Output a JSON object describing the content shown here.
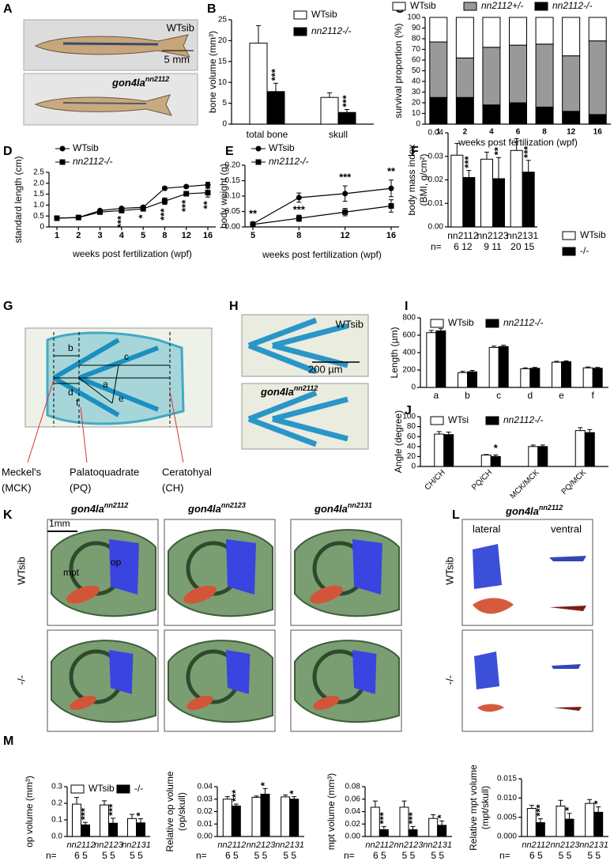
{
  "photo_a": {
    "panel": "A",
    "top_label": "WTsib",
    "scale": "5 mm",
    "bottom_gene": "gon4la",
    "bottom_allele": "nn2112"
  },
  "diagram_g": {
    "panel": "G",
    "letters": [
      "b",
      "c",
      "d",
      "a",
      "f",
      "e"
    ],
    "callouts": [
      "Meckel's",
      "(MCK)",
      "Palatoquadrate",
      "(PQ)",
      "Ceratohyal",
      "(CH)"
    ]
  },
  "photo_h": {
    "panel": "H",
    "top_label": "WTsib",
    "scale": "200 µm",
    "bottom_gene": "gon4la",
    "bottom_allele": "nn2112"
  },
  "render_k": {
    "panel": "K",
    "scale": "1mm",
    "columns": [
      {
        "gene": "gon4la",
        "allele": "nn2112"
      },
      {
        "gene": "gon4la",
        "allele": "nn2123"
      },
      {
        "gene": "gon4la",
        "allele": "nn2131"
      }
    ],
    "row_labels": [
      "WTsib",
      "-/-"
    ],
    "part_labels": [
      "mpt",
      "op"
    ]
  },
  "render_l": {
    "panel": "L",
    "gene": "gon4la",
    "allele": "nn2112",
    "views": [
      "lateral",
      "ventral"
    ],
    "row_labels": [
      "WTsib",
      "-/-"
    ]
  },
  "chart_data": [
    {
      "type": "bar",
      "panel": "B",
      "ylabel": [
        "bone volume (mm³)"
      ],
      "categories": [
        "total bone",
        "skull"
      ],
      "series": [
        {
          "name": "WTsib",
          "color": "#ffffff",
          "values": [
            19.4,
            6.4
          ],
          "errors": [
            4.2,
            1.1
          ]
        },
        {
          "name": "nn2112-/-",
          "color": "#000000",
          "values": [
            7.8,
            2.8
          ],
          "errors": [
            2.0,
            0.7
          ],
          "significance": [
            "***",
            "***"
          ]
        }
      ],
      "ylim": [
        0,
        25
      ],
      "yticks": [
        0,
        5,
        10,
        15,
        20,
        25
      ]
    },
    {
      "type": "stacked_bar",
      "panel": "C",
      "ylabel": [
        "survival proportion (%)"
      ],
      "xlabel": "weeks post fertilization (wpf)",
      "categories": [
        "1",
        "2",
        "4",
        "6",
        "8",
        "12",
        "16"
      ],
      "series": [
        {
          "name": "nn2112-/-",
          "color": "#000000",
          "values": [
            25,
            25,
            18,
            20,
            16,
            12,
            9
          ]
        },
        {
          "name": "nn2112+/-",
          "color": "#999999",
          "values": [
            52,
            37,
            54,
            54,
            59,
            52,
            69
          ]
        },
        {
          "name": "WTsib",
          "color": "#ffffff",
          "values": [
            23,
            38,
            28,
            26,
            25,
            36,
            22
          ]
        }
      ],
      "ylim": [
        0,
        100
      ],
      "yticks": [
        0,
        10,
        20,
        30,
        40,
        50,
        60,
        70,
        80,
        90,
        100
      ]
    },
    {
      "type": "line",
      "panel": "D",
      "ylabel": [
        "standard length (cm)"
      ],
      "xlabel": "weeks post fertilization (wpf)",
      "categories": [
        "1",
        "2",
        "3",
        "4",
        "5",
        "8",
        "12",
        "16"
      ],
      "series": [
        {
          "name": "WTsib",
          "color": "#000000",
          "marker": "circle",
          "values": [
            0.4,
            0.43,
            0.75,
            0.85,
            0.9,
            1.77,
            1.85,
            1.93
          ],
          "errors": [
            0.02,
            0.05,
            0.05,
            0.05,
            0.06,
            0.08,
            0.07,
            0.12
          ]
        },
        {
          "name": "nn2112-/-",
          "color": "#000000",
          "marker": "square",
          "values": [
            0.4,
            0.43,
            0.68,
            0.75,
            0.83,
            1.18,
            1.52,
            1.57
          ],
          "errors": [
            0.02,
            0.05,
            0.06,
            0.06,
            0.08,
            0.15,
            0.1,
            0.2
          ],
          "significance": [
            null,
            null,
            null,
            "***",
            "*",
            "***",
            "***",
            "**"
          ]
        }
      ],
      "ylim": [
        0,
        2.5
      ],
      "yticks": [
        0,
        0.5,
        {
          "value": 1,
          "label": "1.0"
        },
        1.5,
        {
          "value": 2,
          "label": "2.0"
        },
        2.5
      ]
    },
    {
      "type": "line",
      "panel": "E",
      "ylabel": [
        "body weight (g)"
      ],
      "xlabel": "weeks post fertilization (wpf)",
      "categories": [
        "5",
        "8",
        "12",
        "16"
      ],
      "series": [
        {
          "name": "WTsib",
          "color": "#000000",
          "marker": "circle",
          "values": [
            0.01,
            0.095,
            0.108,
            0.125
          ],
          "errors": [
            0.005,
            0.015,
            0.025,
            0.027
          ]
        },
        {
          "name": "nn2112-/-",
          "color": "#000000",
          "marker": "square",
          "values": [
            0.008,
            0.028,
            0.048,
            0.068
          ],
          "errors": [
            0.005,
            0.01,
            0.012,
            0.02
          ],
          "significance": [
            "**",
            "***",
            "***",
            "**"
          ]
        }
      ],
      "ylim": [
        0,
        0.2
      ],
      "yticks": [
        {
          "value": 0,
          "label": "0.00"
        },
        0.05,
        {
          "value": 0.1,
          "label": "0.10"
        },
        0.15,
        {
          "value": 0.2,
          "label": "0.20"
        }
      ]
    },
    {
      "type": "bar",
      "panel": "F",
      "ylabel": [
        "body mass index",
        "(BMI, g/cm²)"
      ],
      "categories": [
        "nn2112",
        "nn2123",
        "nn2131"
      ],
      "n_label": "n=",
      "n_values": [
        "6 12",
        "9 11",
        "20 15"
      ],
      "series": [
        {
          "name": "WTsib",
          "color": "#ffffff",
          "values": [
            0.0305,
            0.0288,
            0.0325
          ],
          "errors": [
            0.005,
            0.003,
            0.005
          ]
        },
        {
          "name": "-/-",
          "color": "#000000",
          "values": [
            0.021,
            0.0205,
            0.0233
          ],
          "errors": [
            0.003,
            0.009,
            0.005
          ],
          "significance": [
            "***",
            "**",
            "***"
          ]
        }
      ],
      "ylim": [
        0,
        0.04
      ],
      "yticks": [
        {
          "value": 0,
          "label": "0.00"
        },
        0.01,
        0.02,
        0.03,
        0.04
      ]
    },
    {
      "type": "bar",
      "panel": "I",
      "ylabel": [
        "Length (µm)"
      ],
      "categories": [
        "a",
        "b",
        "c",
        "d",
        "e",
        "f"
      ],
      "series": [
        {
          "name": "WTsib",
          "color": "#ffffff",
          "values": [
            630,
            170,
            460,
            215,
            290,
            225
          ],
          "errors": [
            25,
            15,
            15,
            10,
            10,
            10
          ]
        },
        {
          "name": "nn2112-/-",
          "color": "#000000",
          "values": [
            650,
            180,
            470,
            220,
            295,
            220
          ],
          "errors": [
            25,
            15,
            15,
            10,
            10,
            10
          ]
        }
      ],
      "ylim": [
        0,
        800
      ],
      "yticks": [
        0,
        200,
        400,
        600,
        800
      ]
    },
    {
      "type": "bar",
      "panel": "J",
      "ylabel": [
        "Angle (degree)"
      ],
      "categories": [
        "CH/CH",
        "PQ/CH",
        "MCK/MCK",
        "PQ/MCK"
      ],
      "series": [
        {
          "name": "WTsi",
          "color": "#ffffff",
          "values": [
            65,
            23,
            40,
            72
          ],
          "errors": [
            5,
            1,
            3,
            6
          ]
        },
        {
          "name": "nn2112-/-",
          "color": "#000000",
          "values": [
            64,
            20,
            40,
            68
          ],
          "errors": [
            5,
            3,
            3,
            6
          ],
          "significance": [
            null,
            "*",
            null,
            null
          ]
        }
      ],
      "ylim": [
        0,
        100
      ],
      "yticks": [
        0,
        20,
        40,
        60,
        80,
        100
      ]
    },
    {
      "type": "bar",
      "panel": "M",
      "ylabel": [
        "op volume (mm³)"
      ],
      "categories": [
        "nn2112",
        "nn2123",
        "nn2131"
      ],
      "n_label": "n=",
      "n_values": [
        "6 5",
        "5 5",
        "5 5"
      ],
      "series": [
        {
          "name": "WTsib",
          "color": "#ffffff",
          "values": [
            0.195,
            0.19,
            0.108
          ],
          "errors": [
            0.04,
            0.025,
            0.025
          ]
        },
        {
          "name": "-/-",
          "color": "#000000",
          "values": [
            0.07,
            0.08,
            0.082
          ],
          "errors": [
            0.015,
            0.03,
            0.025
          ],
          "significance": [
            "***",
            "***",
            "*"
          ]
        }
      ],
      "ylim": [
        0,
        0.3
      ],
      "yticks": [
        {
          "value": 0,
          "label": "0.0"
        },
        0.1,
        0.2,
        0.3
      ]
    },
    {
      "type": "bar",
      "ylabel": [
        "Relative op volume",
        "(op/skull)"
      ],
      "categories": [
        "nn2112",
        "nn2123",
        "nn2131"
      ],
      "n_label": "n=",
      "n_values": [
        "6 5",
        "5 5",
        "5 5"
      ],
      "series": [
        {
          "color": "#ffffff",
          "values": [
            0.03,
            0.0315,
            0.0318
          ],
          "errors": [
            0.002,
            0.001,
            0.0015
          ]
        },
        {
          "color": "#000000",
          "values": [
            0.0245,
            0.034,
            0.03
          ],
          "errors": [
            0.0015,
            0.0045,
            0.002
          ],
          "significance": [
            "***",
            "*",
            "*"
          ]
        }
      ],
      "ylim": [
        0,
        0.04
      ],
      "yticks": [
        {
          "value": 0,
          "label": "0.00"
        },
        0.01,
        0.02,
        0.03,
        0.04
      ]
    },
    {
      "type": "bar",
      "ylabel": [
        "mpt volume (mm³)"
      ],
      "categories": [
        "nn2112",
        "nn2123",
        "nn2131"
      ],
      "n_label": "n=",
      "n_values": [
        "6 5",
        "5 5",
        "5 5"
      ],
      "series": [
        {
          "color": "#ffffff",
          "values": [
            0.047,
            0.047,
            0.029
          ],
          "errors": [
            0.01,
            0.01,
            0.006
          ]
        },
        {
          "color": "#000000",
          "values": [
            0.011,
            0.011,
            0.018
          ],
          "errors": [
            0.005,
            0.005,
            0.007
          ],
          "significance": [
            "***",
            "***",
            "*"
          ]
        }
      ],
      "ylim": [
        0,
        0.08
      ],
      "yticks": [
        {
          "value": 0,
          "label": "0.00"
        },
        0.02,
        0.04,
        0.06,
        0.08
      ]
    },
    {
      "type": "bar",
      "ylabel": [
        "Relative mpt volume",
        "(mpt/skull)"
      ],
      "categories": [
        "nn2112",
        "nn2123",
        "nn2131"
      ],
      "n_label": "n=",
      "n_values": [
        "6 5",
        "5 5",
        "5 5"
      ],
      "series": [
        {
          "color": "#ffffff",
          "values": [
            0.0073,
            0.0079,
            0.0086
          ],
          "errors": [
            0.0008,
            0.0015,
            0.001
          ]
        },
        {
          "color": "#000000",
          "values": [
            0.0036,
            0.0045,
            0.0063
          ],
          "errors": [
            0.001,
            0.0015,
            0.0014
          ],
          "significance": [
            "***",
            "*",
            "*"
          ]
        }
      ],
      "ylim": [
        0,
        0.015
      ],
      "yticks": [
        {
          "value": 0,
          "label": "0.000"
        },
        0.005,
        {
          "value": 0.01,
          "label": "0.010"
        },
        0.015
      ]
    }
  ]
}
